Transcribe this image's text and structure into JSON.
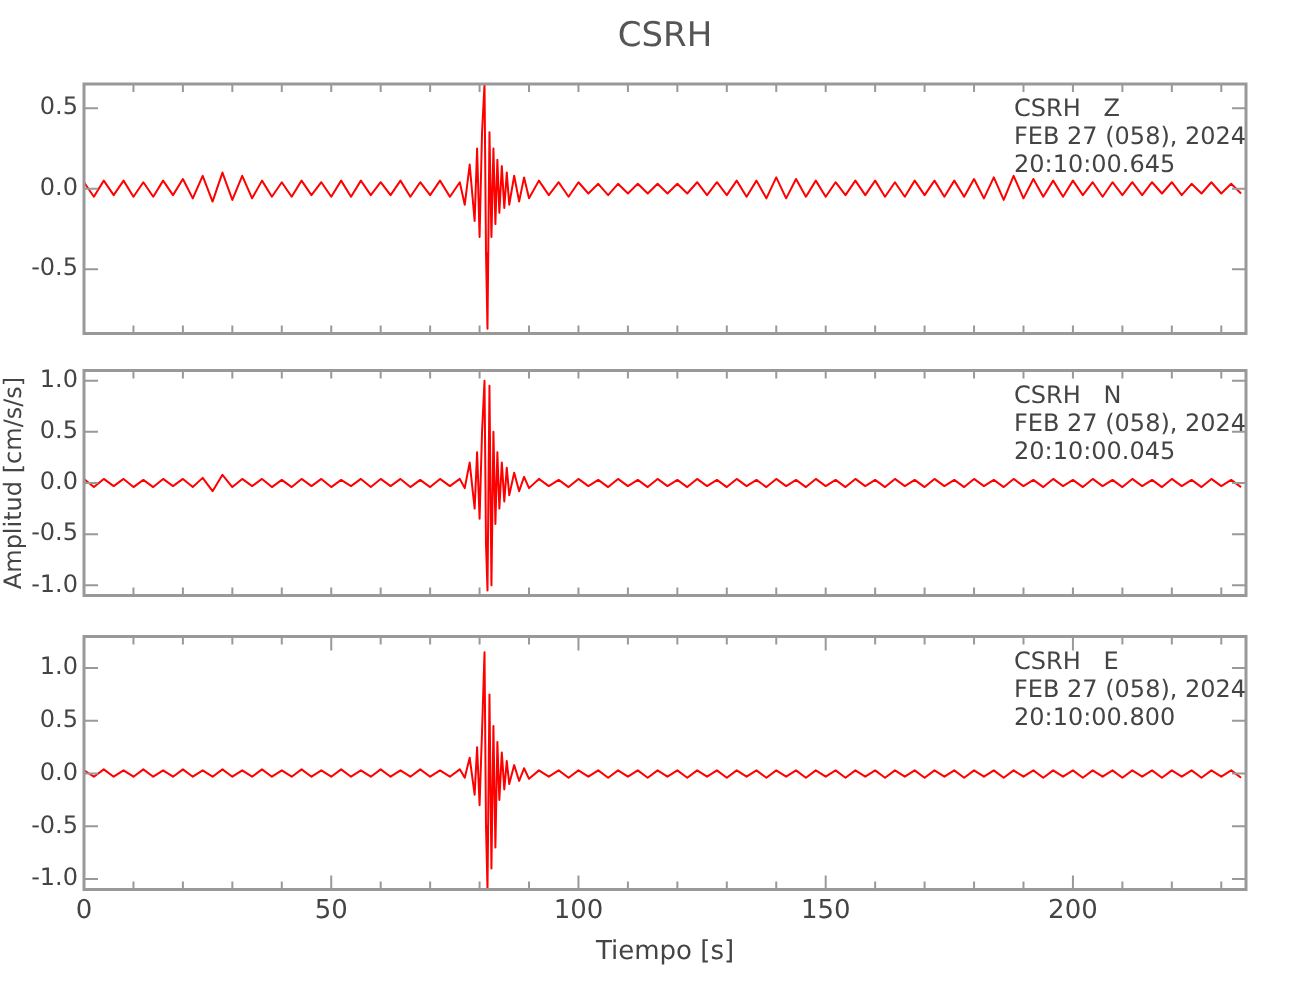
{
  "chart_data": [
    {
      "type": "line",
      "title": "CSRH",
      "annotations": [
        "CSRH   Z",
        "FEB 27 (058), 2024",
        "20:10:00.645"
      ],
      "tick_labels": "y",
      "grid": false,
      "legend": false,
      "xlim": [
        0,
        235
      ],
      "xticks": [
        0,
        {
          "value": 10,
          "label": null
        },
        {
          "value": 20,
          "label": null
        },
        {
          "value": 30,
          "label": null
        },
        {
          "value": 40,
          "label": null
        },
        {
          "value": 50,
          "label": null
        },
        {
          "value": 60,
          "label": null
        },
        {
          "value": 70,
          "label": null
        },
        {
          "value": 80,
          "label": null
        },
        {
          "value": 90,
          "label": null
        },
        {
          "value": 100,
          "label": null
        },
        {
          "value": 110,
          "label": null
        },
        {
          "value": 120,
          "label": null
        },
        {
          "value": 130,
          "label": null
        },
        {
          "value": 140,
          "label": null
        },
        {
          "value": 150,
          "label": null
        },
        {
          "value": 160,
          "label": null
        },
        {
          "value": 170,
          "label": null
        },
        {
          "value": 180,
          "label": null
        },
        {
          "value": 190,
          "label": null
        },
        {
          "value": 200,
          "label": null
        },
        {
          "value": 210,
          "label": null
        },
        {
          "value": 220,
          "label": null
        },
        {
          "value": 230,
          "label": null
        }
      ],
      "ylim": [
        -0.9,
        0.65
      ],
      "yticks": [
        {
          "value": -0.5,
          "label": "-0.5"
        },
        {
          "value": 0,
          "label": "0.0"
        },
        {
          "value": 0.5,
          "label": "0.5"
        }
      ],
      "x": [
        0,
        2,
        4,
        6,
        8,
        10,
        12,
        14,
        16,
        18,
        20,
        22,
        24,
        26,
        28,
        30,
        32,
        34,
        36,
        38,
        40,
        42,
        44,
        46,
        48,
        50,
        52,
        54,
        56,
        58,
        60,
        62,
        64,
        66,
        68,
        70,
        72,
        74,
        76,
        77,
        78,
        79,
        79.5,
        80,
        80.5,
        81,
        81.3,
        81.6,
        82,
        82.4,
        82.8,
        83.2,
        83.6,
        84,
        84.5,
        85,
        85.5,
        86,
        87,
        88,
        89,
        90,
        92,
        94,
        96,
        98,
        100,
        102,
        104,
        106,
        108,
        110,
        112,
        114,
        116,
        118,
        120,
        122,
        124,
        126,
        128,
        130,
        132,
        134,
        136,
        138,
        140,
        142,
        144,
        146,
        148,
        150,
        152,
        154,
        156,
        158,
        160,
        162,
        164,
        166,
        168,
        170,
        172,
        174,
        176,
        178,
        180,
        182,
        184,
        186,
        188,
        190,
        192,
        194,
        196,
        198,
        200,
        202,
        204,
        206,
        208,
        210,
        212,
        214,
        216,
        218,
        220,
        222,
        224,
        226,
        228,
        230,
        232,
        234
      ],
      "series": [
        {
          "color": "#ff0000",
          "values": [
            0.04,
            -0.05,
            0.05,
            -0.04,
            0.05,
            -0.05,
            0.04,
            -0.05,
            0.05,
            -0.04,
            0.06,
            -0.06,
            0.08,
            -0.08,
            0.1,
            -0.07,
            0.08,
            -0.06,
            0.05,
            -0.05,
            0.04,
            -0.05,
            0.05,
            -0.04,
            0.04,
            -0.05,
            0.05,
            -0.05,
            0.05,
            -0.04,
            0.04,
            -0.04,
            0.05,
            -0.05,
            0.04,
            -0.04,
            0.05,
            -0.05,
            0.04,
            -0.1,
            0.15,
            -0.2,
            0.25,
            -0.3,
            0.35,
            0.65,
            -0.4,
            -0.87,
            0.35,
            -0.3,
            0.25,
            -0.22,
            0.18,
            -0.15,
            0.14,
            -0.12,
            0.1,
            -0.1,
            0.08,
            -0.08,
            0.07,
            -0.06,
            0.05,
            -0.04,
            0.04,
            -0.05,
            0.04,
            -0.03,
            0.03,
            -0.04,
            0.03,
            -0.03,
            0.03,
            -0.03,
            0.03,
            -0.03,
            0.03,
            -0.03,
            0.04,
            -0.04,
            0.04,
            -0.04,
            0.05,
            -0.05,
            0.05,
            -0.06,
            0.07,
            -0.06,
            0.06,
            -0.05,
            0.05,
            -0.05,
            0.04,
            -0.04,
            0.05,
            -0.04,
            0.05,
            -0.05,
            0.04,
            -0.05,
            0.05,
            -0.04,
            0.05,
            -0.05,
            0.05,
            -0.05,
            0.06,
            -0.06,
            0.07,
            -0.07,
            0.08,
            -0.06,
            0.06,
            -0.05,
            0.05,
            -0.05,
            0.05,
            -0.04,
            0.04,
            -0.05,
            0.04,
            -0.04,
            0.04,
            -0.04,
            0.04,
            -0.03,
            0.04,
            -0.04,
            0.03,
            -0.03,
            0.04,
            -0.03,
            0.03,
            -0.03
          ]
        }
      ]
    },
    {
      "type": "line",
      "ylabel": "Amplitud [cm/s/s]",
      "annotations": [
        "CSRH   N",
        "FEB 27 (058), 2024",
        "20:10:00.045"
      ],
      "tick_labels": "y",
      "grid": false,
      "legend": false,
      "xlim": [
        0,
        235
      ],
      "xticks": [
        0,
        {
          "value": 10,
          "label": null
        },
        {
          "value": 20,
          "label": null
        },
        {
          "value": 30,
          "label": null
        },
        {
          "value": 40,
          "label": null
        },
        {
          "value": 50,
          "label": null
        },
        {
          "value": 60,
          "label": null
        },
        {
          "value": 70,
          "label": null
        },
        {
          "value": 80,
          "label": null
        },
        {
          "value": 90,
          "label": null
        },
        {
          "value": 100,
          "label": null
        },
        {
          "value": 110,
          "label": null
        },
        {
          "value": 120,
          "label": null
        },
        {
          "value": 130,
          "label": null
        },
        {
          "value": 140,
          "label": null
        },
        {
          "value": 150,
          "label": null
        },
        {
          "value": 160,
          "label": null
        },
        {
          "value": 170,
          "label": null
        },
        {
          "value": 180,
          "label": null
        },
        {
          "value": 190,
          "label": null
        },
        {
          "value": 200,
          "label": null
        },
        {
          "value": 210,
          "label": null
        },
        {
          "value": 220,
          "label": null
        },
        {
          "value": 230,
          "label": null
        }
      ],
      "ylim": [
        -1.1,
        1.1
      ],
      "yticks": [
        {
          "value": -1,
          "label": "-1.0"
        },
        {
          "value": -0.5,
          "label": "-0.5"
        },
        {
          "value": 0,
          "label": "0.0"
        },
        {
          "value": 0.5,
          "label": "0.5"
        },
        {
          "value": 1,
          "label": "1.0"
        }
      ],
      "x": [
        0,
        2,
        4,
        6,
        8,
        10,
        12,
        14,
        16,
        18,
        20,
        22,
        24,
        26,
        28,
        30,
        32,
        34,
        36,
        38,
        40,
        42,
        44,
        46,
        48,
        50,
        52,
        54,
        56,
        58,
        60,
        62,
        64,
        66,
        68,
        70,
        72,
        74,
        76,
        77,
        78,
        79,
        79.5,
        80,
        80.5,
        81,
        81.3,
        81.6,
        82,
        82.4,
        82.8,
        83.2,
        83.6,
        84,
        84.5,
        85,
        85.5,
        86,
        87,
        88,
        89,
        90,
        92,
        94,
        96,
        98,
        100,
        102,
        104,
        106,
        108,
        110,
        112,
        114,
        116,
        118,
        120,
        122,
        124,
        126,
        128,
        130,
        132,
        134,
        136,
        138,
        140,
        142,
        144,
        146,
        148,
        150,
        152,
        154,
        156,
        158,
        160,
        162,
        164,
        166,
        168,
        170,
        172,
        174,
        176,
        178,
        180,
        182,
        184,
        186,
        188,
        190,
        192,
        194,
        196,
        198,
        200,
        202,
        204,
        206,
        208,
        210,
        212,
        214,
        216,
        218,
        220,
        222,
        224,
        226,
        228,
        230,
        232,
        234
      ],
      "series": [
        {
          "color": "#ff0000",
          "values": [
            0.04,
            -0.04,
            0.04,
            -0.03,
            0.04,
            -0.04,
            0.03,
            -0.04,
            0.04,
            -0.03,
            0.04,
            -0.04,
            0.05,
            -0.08,
            0.08,
            -0.04,
            0.04,
            -0.03,
            0.04,
            -0.04,
            0.03,
            -0.04,
            0.04,
            -0.03,
            0.04,
            -0.04,
            0.03,
            -0.03,
            0.04,
            -0.04,
            0.04,
            -0.03,
            0.04,
            -0.04,
            0.03,
            -0.04,
            0.04,
            -0.03,
            0.04,
            -0.05,
            0.2,
            -0.25,
            0.3,
            -0.35,
            0.5,
            1.0,
            -0.6,
            -1.05,
            0.95,
            -1.0,
            0.5,
            -0.4,
            0.3,
            -0.25,
            0.2,
            -0.18,
            0.15,
            -0.12,
            0.1,
            -0.08,
            0.06,
            -0.05,
            0.04,
            -0.03,
            0.03,
            -0.04,
            0.04,
            -0.03,
            0.03,
            -0.04,
            0.04,
            -0.03,
            0.03,
            -0.04,
            0.04,
            -0.03,
            0.03,
            -0.04,
            0.04,
            -0.03,
            0.03,
            -0.04,
            0.04,
            -0.03,
            0.03,
            -0.04,
            0.04,
            -0.03,
            0.03,
            -0.04,
            0.04,
            -0.03,
            0.03,
            -0.04,
            0.04,
            -0.03,
            0.03,
            -0.04,
            0.04,
            -0.03,
            0.03,
            -0.04,
            0.04,
            -0.03,
            0.03,
            -0.04,
            0.04,
            -0.03,
            0.03,
            -0.04,
            0.04,
            -0.03,
            0.03,
            -0.04,
            0.04,
            -0.03,
            0.03,
            -0.04,
            0.04,
            -0.03,
            0.03,
            -0.04,
            0.04,
            -0.03,
            0.03,
            -0.04,
            0.04,
            -0.03,
            0.03,
            -0.04,
            0.04,
            -0.03,
            0.03,
            -0.04
          ]
        }
      ]
    },
    {
      "type": "line",
      "xlabel": "Tiempo [s]",
      "annotations": [
        "CSRH   E",
        "FEB 27 (058), 2024",
        "20:10:00.800"
      ],
      "grid": false,
      "legend": false,
      "xlim": [
        0,
        235
      ],
      "xticks": [
        0,
        {
          "value": 10,
          "label": null
        },
        {
          "value": 20,
          "label": null
        },
        {
          "value": 30,
          "label": null
        },
        {
          "value": 40,
          "label": null
        },
        50,
        {
          "value": 60,
          "label": null
        },
        {
          "value": 70,
          "label": null
        },
        {
          "value": 80,
          "label": null
        },
        {
          "value": 90,
          "label": null
        },
        100,
        {
          "value": 110,
          "label": null
        },
        {
          "value": 120,
          "label": null
        },
        {
          "value": 130,
          "label": null
        },
        {
          "value": 140,
          "label": null
        },
        150,
        {
          "value": 160,
          "label": null
        },
        {
          "value": 170,
          "label": null
        },
        {
          "value": 180,
          "label": null
        },
        {
          "value": 190,
          "label": null
        },
        200,
        {
          "value": 210,
          "label": null
        },
        {
          "value": 220,
          "label": null
        },
        {
          "value": 230,
          "label": null
        }
      ],
      "ylim": [
        -1.1,
        1.3
      ],
      "yticks": [
        {
          "value": -1,
          "label": "-1.0"
        },
        {
          "value": -0.5,
          "label": "-0.5"
        },
        {
          "value": 0,
          "label": "0.0"
        },
        {
          "value": 0.5,
          "label": "0.5"
        },
        {
          "value": 1,
          "label": "1.0"
        }
      ],
      "x": [
        0,
        2,
        4,
        6,
        8,
        10,
        12,
        14,
        16,
        18,
        20,
        22,
        24,
        26,
        28,
        30,
        32,
        34,
        36,
        38,
        40,
        42,
        44,
        46,
        48,
        50,
        52,
        54,
        56,
        58,
        60,
        62,
        64,
        66,
        68,
        70,
        72,
        74,
        76,
        77,
        78,
        79,
        79.5,
        80,
        80.5,
        81,
        81.3,
        81.6,
        82,
        82.4,
        82.8,
        83.2,
        83.6,
        84,
        84.5,
        85,
        85.5,
        86,
        87,
        88,
        89,
        90,
        92,
        94,
        96,
        98,
        100,
        102,
        104,
        106,
        108,
        110,
        112,
        114,
        116,
        118,
        120,
        122,
        124,
        126,
        128,
        130,
        132,
        134,
        136,
        138,
        140,
        142,
        144,
        146,
        148,
        150,
        152,
        154,
        156,
        158,
        160,
        162,
        164,
        166,
        168,
        170,
        172,
        174,
        176,
        178,
        180,
        182,
        184,
        186,
        188,
        190,
        192,
        194,
        196,
        198,
        200,
        202,
        204,
        206,
        208,
        210,
        212,
        214,
        216,
        218,
        220,
        222,
        224,
        226,
        228,
        230,
        232,
        234
      ],
      "series": [
        {
          "color": "#ff0000",
          "values": [
            0.03,
            -0.03,
            0.04,
            -0.03,
            0.03,
            -0.03,
            0.04,
            -0.03,
            0.03,
            -0.03,
            0.04,
            -0.03,
            0.03,
            -0.03,
            0.04,
            -0.03,
            0.03,
            -0.03,
            0.04,
            -0.03,
            0.03,
            -0.03,
            0.04,
            -0.03,
            0.03,
            -0.03,
            0.04,
            -0.03,
            0.03,
            -0.03,
            0.04,
            -0.03,
            0.03,
            -0.03,
            0.04,
            -0.03,
            0.03,
            -0.03,
            0.04,
            -0.04,
            0.15,
            -0.2,
            0.25,
            -0.3,
            0.4,
            1.15,
            -0.5,
            -1.1,
            0.75,
            -0.9,
            0.45,
            -0.7,
            0.3,
            -0.25,
            0.2,
            -0.15,
            0.12,
            -0.1,
            0.08,
            -0.07,
            0.05,
            -0.05,
            0.03,
            -0.03,
            0.03,
            -0.04,
            0.03,
            -0.03,
            0.03,
            -0.04,
            0.03,
            -0.03,
            0.03,
            -0.04,
            0.03,
            -0.03,
            0.03,
            -0.04,
            0.03,
            -0.03,
            0.03,
            -0.04,
            0.03,
            -0.03,
            0.03,
            -0.04,
            0.03,
            -0.03,
            0.03,
            -0.04,
            0.03,
            -0.03,
            0.03,
            -0.04,
            0.03,
            -0.03,
            0.03,
            -0.04,
            0.03,
            -0.03,
            0.03,
            -0.04,
            0.03,
            -0.03,
            0.03,
            -0.04,
            0.03,
            -0.03,
            0.03,
            -0.04,
            0.03,
            -0.03,
            0.03,
            -0.04,
            0.03,
            -0.03,
            0.03,
            -0.04,
            0.03,
            -0.03,
            0.03,
            -0.04,
            0.03,
            -0.03,
            0.03,
            -0.04,
            0.03,
            -0.03,
            0.03,
            -0.04,
            0.03,
            -0.03,
            0.03,
            -0.04
          ]
        }
      ]
    }
  ]
}
